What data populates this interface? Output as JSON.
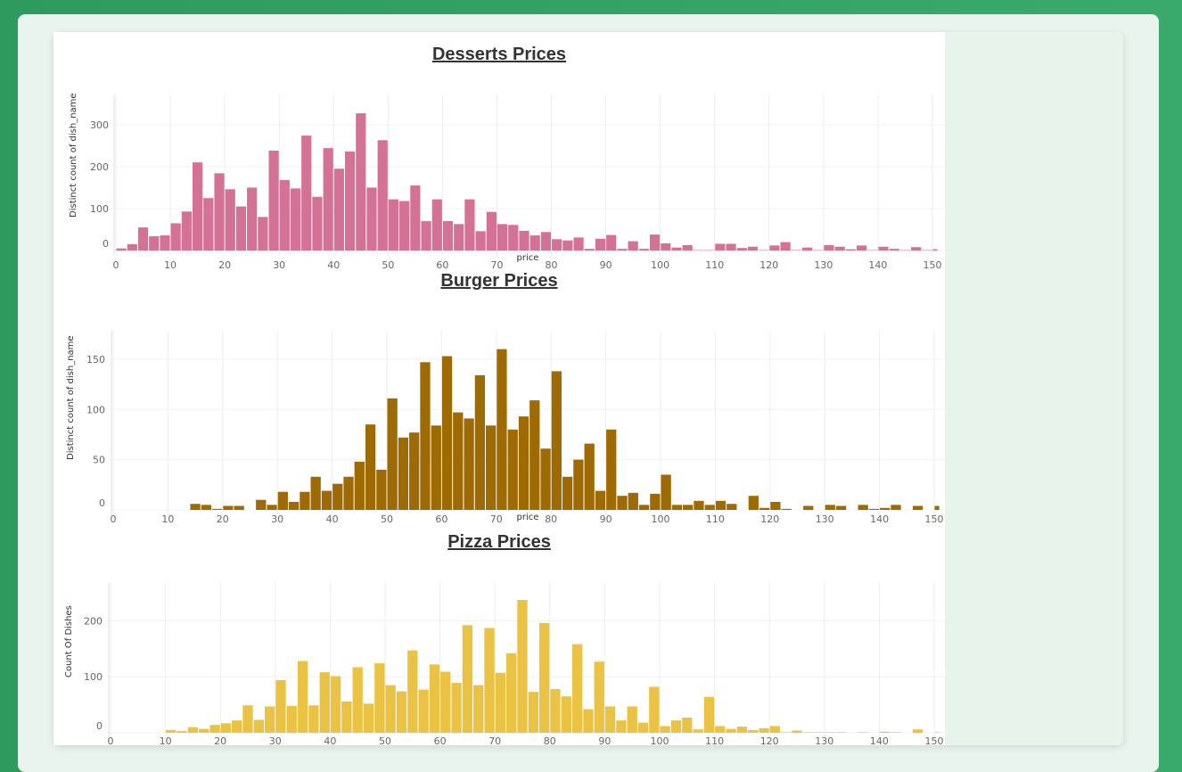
{
  "chart_data": [
    {
      "type": "bar",
      "title": "Desserts Prices",
      "xlabel": "price",
      "ylabel": "Distinct count of dish_name",
      "color": "#d37295",
      "xlim": [
        0,
        150
      ],
      "ylim": [
        0,
        340
      ],
      "yticks": [
        0,
        100,
        200,
        300
      ],
      "xticks": [
        0,
        10,
        20,
        30,
        40,
        50,
        60,
        70,
        80,
        90,
        100,
        110,
        120,
        130,
        140,
        150
      ],
      "bin_width": 2,
      "x": [
        0,
        2,
        4,
        6,
        8,
        10,
        12,
        14,
        16,
        18,
        20,
        22,
        24,
        26,
        28,
        30,
        32,
        34,
        36,
        38,
        40,
        42,
        44,
        46,
        48,
        50,
        52,
        54,
        56,
        58,
        60,
        62,
        64,
        66,
        68,
        70,
        72,
        74,
        76,
        78,
        80,
        82,
        84,
        86,
        88,
        90,
        92,
        94,
        96,
        98,
        100,
        102,
        104,
        106,
        108,
        110,
        112,
        114,
        116,
        118,
        120,
        122,
        124,
        126,
        128,
        130,
        132,
        134,
        136,
        138,
        140,
        142,
        144,
        146,
        148,
        150
      ],
      "values": [
        5,
        15,
        55,
        34,
        36,
        65,
        93,
        210,
        125,
        184,
        146,
        105,
        150,
        80,
        238,
        168,
        148,
        274,
        128,
        244,
        195,
        236,
        327,
        150,
        263,
        122,
        118,
        155,
        70,
        122,
        70,
        63,
        122,
        46,
        92,
        63,
        61,
        47,
        36,
        44,
        27,
        24,
        31,
        4,
        28,
        37,
        4,
        22,
        4,
        38,
        17,
        7,
        13,
        1,
        1,
        16,
        16,
        6,
        9,
        1,
        12,
        20,
        1,
        7,
        1,
        13,
        9,
        3,
        12,
        1,
        9,
        4,
        1,
        8,
        1,
        3
      ]
    },
    {
      "type": "bar",
      "title": "Burger Prices",
      "xlabel": "price",
      "ylabel": "Distinct count of dish_name",
      "color": "#9e6a03",
      "xlim": [
        0,
        150
      ],
      "ylim": [
        0,
        165
      ],
      "yticks": [
        0,
        50,
        100,
        150
      ],
      "xticks": [
        0,
        10,
        20,
        30,
        40,
        50,
        60,
        70,
        80,
        90,
        100,
        110,
        120,
        130,
        140,
        150
      ],
      "bin_width": 2,
      "x": [
        0,
        2,
        4,
        6,
        8,
        10,
        12,
        14,
        16,
        18,
        20,
        22,
        24,
        26,
        28,
        30,
        32,
        34,
        36,
        38,
        40,
        42,
        44,
        46,
        48,
        50,
        52,
        54,
        56,
        58,
        60,
        62,
        64,
        66,
        68,
        70,
        72,
        74,
        76,
        78,
        80,
        82,
        84,
        86,
        88,
        90,
        92,
        94,
        96,
        98,
        100,
        102,
        104,
        106,
        108,
        110,
        112,
        114,
        116,
        118,
        120,
        122,
        124,
        126,
        128,
        130,
        132,
        134,
        136,
        138,
        140,
        142,
        144,
        146,
        148,
        150
      ],
      "values": [
        0,
        0,
        0,
        0,
        0,
        0,
        0,
        6,
        5,
        1,
        4,
        4,
        0,
        10,
        5,
        18,
        8,
        18,
        33,
        19,
        26,
        33,
        48,
        85,
        40,
        111,
        72,
        77,
        147,
        84,
        153,
        97,
        91,
        134,
        84,
        160,
        80,
        93,
        109,
        61,
        138,
        33,
        50,
        66,
        19,
        80,
        14,
        17,
        5,
        16,
        35,
        5,
        5,
        9,
        5,
        9,
        6,
        0,
        14,
        2,
        8,
        1,
        0,
        4,
        0,
        5,
        4,
        0,
        5,
        1,
        2,
        5,
        0,
        4,
        0,
        4
      ]
    },
    {
      "type": "bar",
      "title": "Pizza Prices",
      "xlabel": "",
      "ylabel": "Count Of Dishes",
      "color": "#eac344",
      "xlim": [
        0,
        150
      ],
      "ylim": [
        0,
        245
      ],
      "yticks": [
        0,
        100,
        200
      ],
      "xticks": [
        0,
        10,
        20,
        30,
        40,
        50,
        60,
        70,
        80,
        90,
        100,
        110,
        120,
        130,
        140,
        150
      ],
      "bin_width": 2,
      "x": [
        0,
        2,
        4,
        6,
        8,
        10,
        12,
        14,
        16,
        18,
        20,
        22,
        24,
        26,
        28,
        30,
        32,
        34,
        36,
        38,
        40,
        42,
        44,
        46,
        48,
        50,
        52,
        54,
        56,
        58,
        60,
        62,
        64,
        66,
        68,
        70,
        72,
        74,
        76,
        78,
        80,
        82,
        84,
        86,
        88,
        90,
        92,
        94,
        96,
        98,
        100,
        102,
        104,
        106,
        108,
        110,
        112,
        114,
        116,
        118,
        120,
        122,
        124,
        126,
        128,
        130,
        132,
        134,
        136,
        138,
        140,
        142,
        144,
        146,
        148,
        150
      ],
      "values": [
        0,
        0,
        0,
        0,
        0,
        5,
        3,
        10,
        7,
        14,
        17,
        22,
        49,
        23,
        47,
        94,
        48,
        128,
        49,
        108,
        101,
        56,
        117,
        52,
        124,
        85,
        74,
        147,
        77,
        122,
        109,
        89,
        192,
        85,
        187,
        107,
        142,
        237,
        73,
        196,
        78,
        65,
        158,
        42,
        127,
        47,
        22,
        47,
        18,
        82,
        12,
        22,
        27,
        6,
        64,
        12,
        7,
        11,
        5,
        8,
        12,
        1,
        4,
        1,
        1,
        1,
        1,
        0,
        1,
        0,
        2,
        1,
        0,
        6,
        0,
        1
      ]
    }
  ]
}
